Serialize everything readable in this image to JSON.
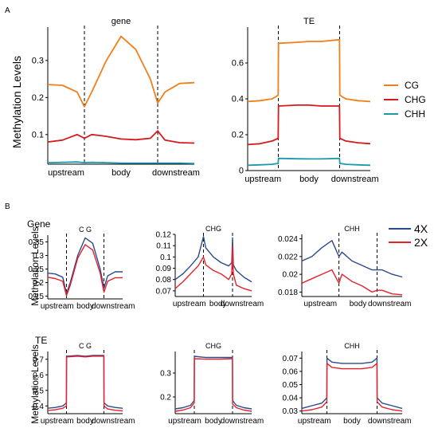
{
  "panel_a_label": "A",
  "panel_b_label": "B",
  "panel_a_ylabel": "Methylation Levels",
  "panel_b_ylabel_1": "Methylation Levels",
  "panel_b_ylabel_2": "Methylation Levels",
  "row_gene_label": "Gene",
  "row_te_label": "TE",
  "x_region_labels": [
    "upstream",
    "body",
    "downstream"
  ],
  "legend_top": [
    {
      "name": "CG",
      "color": "#f07f1a"
    },
    {
      "name": "CHG",
      "color": "#d7191c"
    },
    {
      "name": "CHH",
      "color": "#1b9aaa"
    }
  ],
  "legend_b": [
    {
      "name": "4X",
      "color": "#2b4a8b"
    },
    {
      "name": "2X",
      "color": "#e8202a"
    }
  ],
  "chart_data": [
    {
      "type": "line",
      "id": "A-gene",
      "title": "gene",
      "ylim": [
        0.02,
        0.39
      ],
      "yticks": [
        0.1,
        0.2,
        0.3
      ],
      "x": [
        0,
        10,
        20,
        25,
        30,
        40,
        50,
        60,
        70,
        75,
        80,
        90,
        100
      ],
      "series": [
        {
          "name": "CG",
          "color": "#f07f1a",
          "values": [
            0.235,
            0.233,
            0.215,
            0.175,
            0.215,
            0.3,
            0.365,
            0.33,
            0.25,
            0.185,
            0.215,
            0.238,
            0.24
          ]
        },
        {
          "name": "CHG",
          "color": "#d7191c",
          "values": [
            0.08,
            0.085,
            0.1,
            0.09,
            0.1,
            0.095,
            0.088,
            0.086,
            0.09,
            0.11,
            0.085,
            0.078,
            0.077
          ]
        },
        {
          "name": "CHH",
          "color": "#1b9aaa",
          "values": [
            0.024,
            0.025,
            0.026,
            0.024,
            0.025,
            0.024,
            0.023,
            0.023,
            0.023,
            0.023,
            0.023,
            0.023,
            0.022
          ]
        }
      ],
      "boundaries": [
        25,
        75
      ]
    },
    {
      "type": "line",
      "id": "A-TE",
      "title": "TE",
      "ylim": [
        0.0,
        0.8
      ],
      "yticks": [
        0.0,
        0.2,
        0.4,
        0.6
      ],
      "x": [
        0,
        10,
        20,
        24.9,
        25.1,
        40,
        50,
        60,
        74.9,
        75.1,
        80,
        90,
        100
      ],
      "series": [
        {
          "name": "CG",
          "color": "#f07f1a",
          "values": [
            0.385,
            0.39,
            0.4,
            0.42,
            0.71,
            0.715,
            0.72,
            0.72,
            0.73,
            0.42,
            0.4,
            0.39,
            0.385
          ]
        },
        {
          "name": "CHG",
          "color": "#d7191c",
          "values": [
            0.145,
            0.15,
            0.165,
            0.18,
            0.36,
            0.365,
            0.365,
            0.36,
            0.36,
            0.18,
            0.165,
            0.155,
            0.15
          ]
        },
        {
          "name": "CHH",
          "color": "#1b9aaa",
          "values": [
            0.03,
            0.032,
            0.035,
            0.04,
            0.068,
            0.066,
            0.065,
            0.065,
            0.068,
            0.04,
            0.035,
            0.032,
            0.03
          ]
        }
      ],
      "boundaries": [
        25,
        75
      ]
    },
    {
      "type": "line",
      "id": "B-gene-CG",
      "title": "C  G",
      "ylim": [
        0.14,
        0.375
      ],
      "yticks": [
        0.15,
        0.2,
        0.25,
        0.3,
        0.35
      ],
      "x": [
        0,
        10,
        20,
        25,
        30,
        40,
        50,
        60,
        70,
        75,
        80,
        90,
        100
      ],
      "series": [
        {
          "name": "4X",
          "color": "#2b4a8b",
          "values": [
            0.235,
            0.232,
            0.22,
            0.16,
            0.2,
            0.3,
            0.365,
            0.345,
            0.25,
            0.18,
            0.225,
            0.24,
            0.24
          ]
        },
        {
          "name": "2X",
          "color": "#e8202a",
          "values": [
            0.22,
            0.215,
            0.205,
            0.152,
            0.19,
            0.29,
            0.34,
            0.32,
            0.235,
            0.165,
            0.205,
            0.218,
            0.218
          ]
        }
      ],
      "boundaries": [
        25,
        75
      ]
    },
    {
      "type": "line",
      "id": "B-gene-CHG",
      "title": "CHG",
      "ylim": [
        0.065,
        0.12
      ],
      "yticks": [
        0.07,
        0.08,
        0.09,
        0.1,
        0.11,
        0.12
      ],
      "x": [
        0,
        10,
        20,
        30,
        37,
        40,
        50,
        60,
        70,
        74,
        75,
        76,
        80,
        90,
        100
      ],
      "series": [
        {
          "name": "4X",
          "color": "#2b4a8b",
          "values": [
            0.08,
            0.085,
            0.092,
            0.1,
            0.118,
            0.108,
            0.1,
            0.095,
            0.092,
            0.095,
            0.117,
            0.093,
            0.088,
            0.082,
            0.078
          ]
        },
        {
          "name": "2X",
          "color": "#e8202a",
          "values": [
            0.072,
            0.078,
            0.085,
            0.092,
            0.1,
            0.093,
            0.088,
            0.085,
            0.08,
            0.085,
            0.11,
            0.085,
            0.075,
            0.072,
            0.07
          ]
        }
      ],
      "boundaries": [
        37,
        75
      ]
    },
    {
      "type": "line",
      "id": "B-gene-CHH",
      "title": "CHH",
      "ylim": [
        0.0175,
        0.0245
      ],
      "yticks": [
        0.018,
        0.02,
        0.022,
        0.024
      ],
      "x": [
        0,
        10,
        20,
        30,
        37,
        40,
        50,
        60,
        70,
        75,
        80,
        90,
        100
      ],
      "series": [
        {
          "name": "4X",
          "color": "#2b4a8b",
          "values": [
            0.0215,
            0.022,
            0.023,
            0.0238,
            0.022,
            0.0225,
            0.0215,
            0.021,
            0.0205,
            0.0205,
            0.0205,
            0.02,
            0.0197
          ]
        },
        {
          "name": "2X",
          "color": "#e8202a",
          "values": [
            0.019,
            0.0195,
            0.02,
            0.0205,
            0.019,
            0.02,
            0.0192,
            0.0187,
            0.018,
            0.0182,
            0.0182,
            0.0178,
            0.0177
          ]
        }
      ],
      "boundaries": [
        37,
        75
      ]
    },
    {
      "type": "line",
      "id": "B-TE-CG",
      "title": "C  G",
      "ylim": [
        0.35,
        0.75
      ],
      "yticks": [
        0.4,
        0.5,
        0.6,
        0.7
      ],
      "x": [
        0,
        10,
        20,
        24.9,
        25.1,
        40,
        50,
        60,
        74.9,
        75.1,
        80,
        90,
        100
      ],
      "series": [
        {
          "name": "4X",
          "color": "#2b4a8b",
          "values": [
            0.385,
            0.39,
            0.4,
            0.42,
            0.72,
            0.725,
            0.72,
            0.725,
            0.725,
            0.42,
            0.4,
            0.39,
            0.385
          ]
        },
        {
          "name": "2X",
          "color": "#e8202a",
          "values": [
            0.37,
            0.375,
            0.385,
            0.4,
            0.715,
            0.72,
            0.715,
            0.72,
            0.72,
            0.4,
            0.38,
            0.372,
            0.368
          ]
        }
      ],
      "boundaries": [
        25,
        75
      ]
    },
    {
      "type": "line",
      "id": "B-TE-CHG",
      "title": "CHG",
      "ylim": [
        0.13,
        0.39
      ],
      "yticks": [
        0.2,
        0.3
      ],
      "x": [
        0,
        10,
        20,
        24.9,
        25.1,
        40,
        50,
        60,
        74.9,
        75.1,
        80,
        90,
        100
      ],
      "series": [
        {
          "name": "4X",
          "color": "#2b4a8b",
          "values": [
            0.15,
            0.155,
            0.165,
            0.185,
            0.37,
            0.365,
            0.365,
            0.365,
            0.365,
            0.185,
            0.165,
            0.155,
            0.15
          ]
        },
        {
          "name": "2X",
          "color": "#e8202a",
          "values": [
            0.14,
            0.145,
            0.155,
            0.175,
            0.36,
            0.358,
            0.358,
            0.358,
            0.36,
            0.17,
            0.155,
            0.145,
            0.14
          ]
        }
      ],
      "boundaries": [
        25,
        75
      ]
    },
    {
      "type": "line",
      "id": "B-TE-CHH",
      "title": "CHH",
      "ylim": [
        0.028,
        0.075
      ],
      "yticks": [
        0.03,
        0.04,
        0.05,
        0.06,
        0.07
      ],
      "x": [
        0,
        10,
        20,
        24.9,
        25.1,
        30,
        40,
        50,
        60,
        70,
        74.9,
        75.1,
        80,
        90,
        100
      ],
      "series": [
        {
          "name": "4X",
          "color": "#2b4a8b",
          "values": [
            0.032,
            0.034,
            0.036,
            0.04,
            0.07,
            0.067,
            0.066,
            0.066,
            0.066,
            0.067,
            0.07,
            0.04,
            0.036,
            0.034,
            0.032
          ]
        },
        {
          "name": "2X",
          "color": "#e8202a",
          "values": [
            0.03,
            0.031,
            0.033,
            0.037,
            0.066,
            0.063,
            0.062,
            0.062,
            0.062,
            0.063,
            0.066,
            0.037,
            0.033,
            0.031,
            0.03
          ]
        }
      ],
      "boundaries": [
        25,
        75
      ]
    }
  ]
}
